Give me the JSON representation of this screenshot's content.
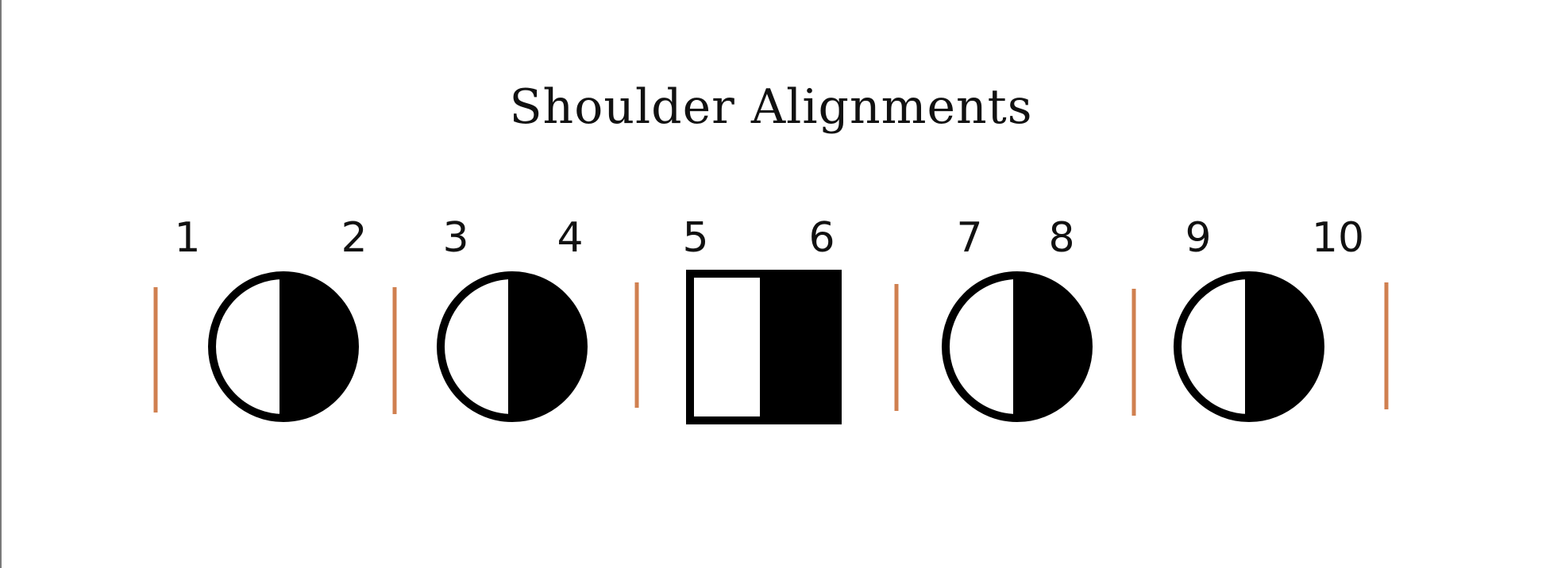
{
  "title": "Shoulder Alignments",
  "labels": [
    "1",
    "2",
    "3",
    "4",
    "5",
    "6",
    "7",
    "8",
    "9",
    "10"
  ],
  "shapes": [
    {
      "type": "circle",
      "left_fill": "white",
      "right_fill": "black"
    },
    {
      "type": "circle",
      "left_fill": "white",
      "right_fill": "black"
    },
    {
      "type": "square",
      "left_fill": "white",
      "right_fill": "black"
    },
    {
      "type": "circle",
      "left_fill": "white",
      "right_fill": "black"
    },
    {
      "type": "circle",
      "left_fill": "white",
      "right_fill": "black"
    }
  ],
  "divider_count": 6,
  "colors": {
    "divider": "#d08050",
    "ink": "#000000",
    "background": "#ffffff"
  }
}
